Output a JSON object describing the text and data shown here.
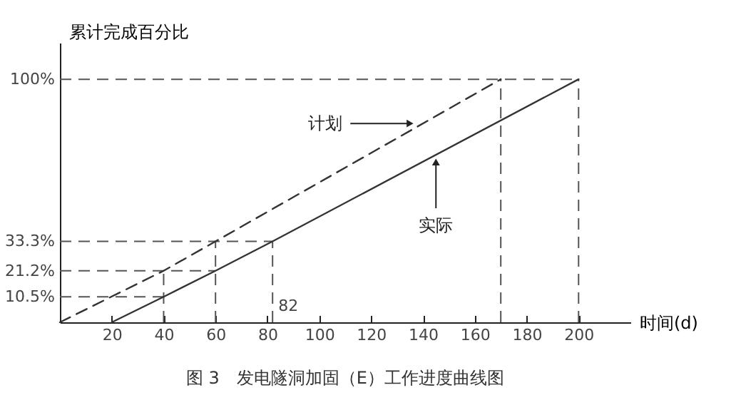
{
  "chart_data": {
    "type": "line",
    "title": "图 3　发电隧洞加固（E）工作进度曲线图",
    "xlabel": "时间(d)",
    "ylabel": "累计完成百分比",
    "series": [
      {
        "name": "计划",
        "color": "#333333",
        "line_style": "dashed",
        "x": [
          0,
          40,
          60,
          170
        ],
        "values": [
          0,
          21.2,
          33.3,
          100
        ]
      },
      {
        "name": "实际",
        "color": "#333333",
        "line_style": "solid",
        "x": [
          20,
          40,
          60,
          82,
          200
        ],
        "values": [
          0,
          10.5,
          21.2,
          33.3,
          100
        ]
      }
    ],
    "xlim": [
      0,
      220
    ],
    "ylim": [
      0,
      115
    ],
    "xticks": [
      20,
      40,
      60,
      80,
      100,
      120,
      140,
      160,
      180,
      200
    ],
    "yticks": [
      {
        "value": 10.5,
        "label": "10.5%"
      },
      {
        "value": 21.2,
        "label": "21.2%"
      },
      {
        "value": 33.3,
        "label": "33.3%"
      },
      {
        "value": 100,
        "label": "100%"
      }
    ],
    "ref_lines": [
      {
        "axis": "y",
        "value": 100,
        "line_style": "dashed",
        "color": "#555555"
      },
      {
        "axis": "y",
        "value": 33.3,
        "line_style": "dashed",
        "color": "#555555"
      },
      {
        "axis": "y",
        "value": 21.2,
        "line_style": "dashed",
        "color": "#555555"
      },
      {
        "axis": "y",
        "value": 10.5,
        "line_style": "dashed",
        "color": "#555555"
      },
      {
        "axis": "x",
        "value": 40,
        "line_style": "dashed",
        "color": "#555555"
      },
      {
        "axis": "x",
        "value": 60,
        "line_style": "dashed",
        "color": "#555555"
      },
      {
        "axis": "x",
        "value": 82,
        "line_style": "dashed",
        "color": "#555555"
      },
      {
        "axis": "x",
        "value": 170,
        "line_style": "dashed",
        "color": "#555555"
      },
      {
        "axis": "x",
        "value": 200,
        "line_style": "dashed",
        "color": "#555555"
      }
    ],
    "annotations": [
      {
        "text": "82",
        "x": 82,
        "y": 0
      }
    ],
    "marker": "none",
    "grid": false
  }
}
